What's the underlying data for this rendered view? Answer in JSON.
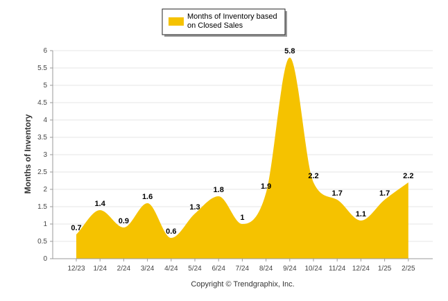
{
  "chart_data": {
    "type": "area",
    "categories": [
      "12/23",
      "1/24",
      "2/24",
      "3/24",
      "4/24",
      "5/24",
      "6/24",
      "7/24",
      "8/24",
      "9/24",
      "10/24",
      "11/24",
      "12/24",
      "1/25",
      "2/25"
    ],
    "series": [
      {
        "name": "Months of Inventory based on Closed Sales",
        "values": [
          0.7,
          1.4,
          0.9,
          1.6,
          0.6,
          1.3,
          1.8,
          1,
          1.9,
          5.8,
          2.2,
          1.7,
          1.1,
          1.7,
          2.2
        ]
      }
    ],
    "data_labels": [
      "0.7",
      "1.4",
      "0.9",
      "1.6",
      "0.6",
      "1.3",
      "1.8",
      "1",
      "1.9",
      "5.8",
      "2.2",
      "1.7",
      "1.1",
      "1.7",
      "2.2"
    ],
    "ylabel": "Months of Inventory",
    "xlabel": "",
    "ylim": [
      0,
      6
    ],
    "yticks": [
      "0",
      "0.5",
      "1",
      "1.5",
      "2",
      "2.5",
      "3",
      "3.5",
      "4",
      "4.5",
      "5",
      "5.5",
      "6"
    ],
    "grid": true,
    "legend_position": "top-center",
    "colors": {
      "fill": "#f5c200",
      "grid": "#e6e6e6",
      "axis": "#999999"
    }
  },
  "legend": {
    "line1": "Months of Inventory based",
    "line2": "on Closed Sales"
  },
  "footer": {
    "copyright": "Copyright © Trendgraphix, Inc."
  }
}
